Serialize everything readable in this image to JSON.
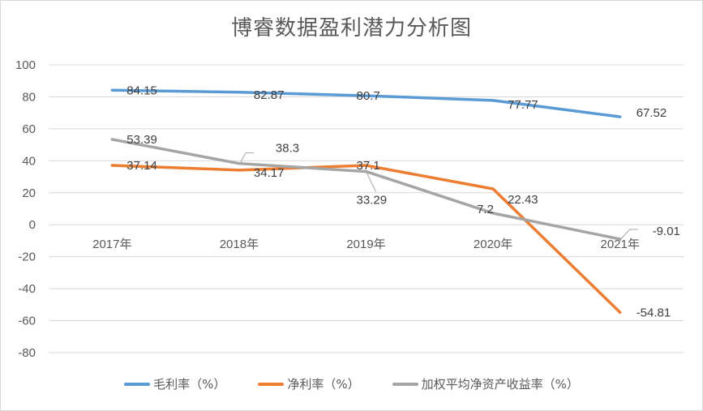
{
  "chart_data": {
    "type": "line",
    "title": "博睿数据盈利潜力分析图",
    "xlabel": "",
    "ylabel": "",
    "categories": [
      "2017年",
      "2018年",
      "2019年",
      "2020年",
      "2021年"
    ],
    "ylim": [
      -80,
      100
    ],
    "yticks": [
      100,
      80,
      60,
      40,
      20,
      0,
      -20,
      -40,
      -60,
      -80
    ],
    "grid": true,
    "legend_position": "bottom",
    "series": [
      {
        "name": "毛利率（%）",
        "color": "#5b9bd5",
        "values": [
          84.15,
          82.87,
          80.7,
          77.77,
          67.52
        ],
        "labels": [
          "84.15",
          "82.87",
          "80.7",
          "77.77",
          "67.52"
        ]
      },
      {
        "name": "净利率（%）",
        "color": "#ed7d31",
        "values": [
          37.14,
          34.17,
          37.1,
          22.43,
          -54.81
        ],
        "labels": [
          "37.14",
          "34.17",
          "37.1",
          "22.43",
          "-54.81"
        ]
      },
      {
        "name": "加权平均净资产收益率（%）",
        "color": "#a5a5a5",
        "values": [
          53.39,
          38.3,
          33.29,
          7.2,
          -9.01
        ],
        "labels": [
          "53.39",
          "38.3",
          "33.29",
          "7.2",
          "-9.01"
        ]
      }
    ]
  }
}
